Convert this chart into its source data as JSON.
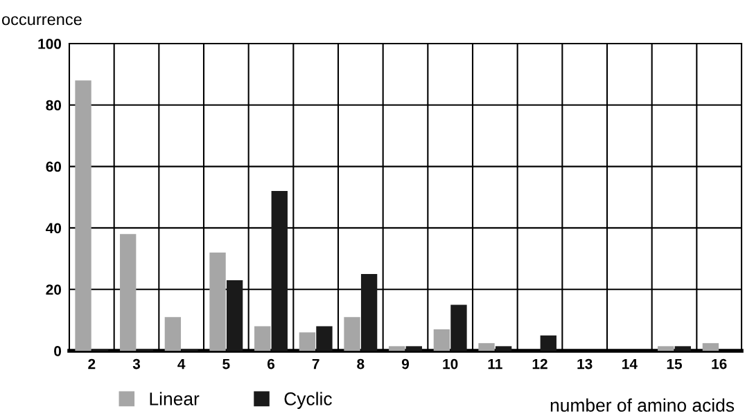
{
  "chart_data": {
    "type": "bar",
    "ylabel": "occurrence",
    "xlabel": "number of amino acids",
    "categories": [
      "2",
      "3",
      "4",
      "5",
      "6",
      "7",
      "8",
      "9",
      "10",
      "11",
      "12",
      "13",
      "14",
      "15",
      "16"
    ],
    "series": [
      {
        "name": "Linear",
        "color": "#a6a6a6",
        "values": [
          88,
          38,
          11,
          32,
          8,
          6,
          11,
          1.5,
          7,
          2.5,
          0,
          0,
          0,
          1.5,
          2.5
        ]
      },
      {
        "name": "Cyclic",
        "color": "#1a1a1a",
        "values": [
          0.5,
          0.5,
          0.5,
          23,
          52,
          8,
          25,
          1.5,
          15,
          1.5,
          5,
          0,
          0,
          1.5,
          0
        ]
      }
    ],
    "ylim": [
      0,
      100
    ],
    "yticks": [
      0,
      20,
      40,
      60,
      80,
      100
    ],
    "grid": true,
    "legend": "bottom left"
  }
}
